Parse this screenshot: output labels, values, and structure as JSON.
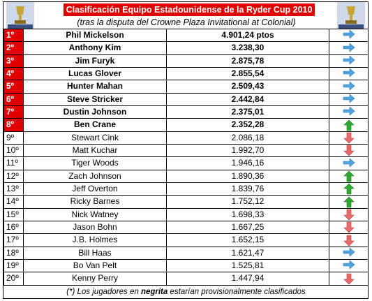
{
  "header": {
    "title": "Clasificación Equipo Estadounidense de la Ryder Cup 2010",
    "subtitle": "(tras la disputa del Crowne Plaza Invitational at Colonial)"
  },
  "table": {
    "rows": [
      [
        "1º",
        "Phil Mickelson",
        "4.901,24 ptos"
      ],
      [
        "2º",
        "Anthony Kim",
        "3.238,30"
      ],
      [
        "3º",
        "Jim Furyk",
        "2.875,78"
      ],
      [
        "4º",
        "Lucas Glover",
        "2.855,54"
      ],
      [
        "5º",
        "Hunter Mahan",
        "2.509,43"
      ],
      [
        "6º",
        "Steve Stricker",
        "2.442,84"
      ],
      [
        "7º",
        "Dustin Johnson",
        "2.375,01"
      ],
      [
        "8º",
        "Ben Crane",
        "2.352,28"
      ],
      [
        "9º",
        "Stewart Cink",
        "2.086,18"
      ],
      [
        "10º",
        "Matt Kuchar",
        "1.992,70"
      ],
      [
        "11º",
        "Tiger Woods",
        "1.946,16"
      ],
      [
        "12º",
        "Zach Johnson",
        "1.890,36"
      ],
      [
        "13º",
        "Jeff Overton",
        "1.839,76"
      ],
      [
        "14º",
        "Ricky Barnes",
        "1.752,12"
      ],
      [
        "15º",
        "Nick Watney",
        "1.698,33"
      ],
      [
        "16º",
        "Jason Bohn",
        "1.667,25"
      ],
      [
        "17º",
        "J.B. Holmes",
        "1.652,15"
      ],
      [
        "18º",
        "Bill Haas",
        "1.621,47"
      ],
      [
        "19º",
        "Bo Van Pelt",
        "1.525,81"
      ],
      [
        "20º",
        "Kenny Perry",
        "1.447,94"
      ]
    ]
  },
  "footer": {
    "parts": [
      "(*) Los jugadores en ",
      "negrita",
      " estarían provisionalmente clasificados"
    ]
  }
}
